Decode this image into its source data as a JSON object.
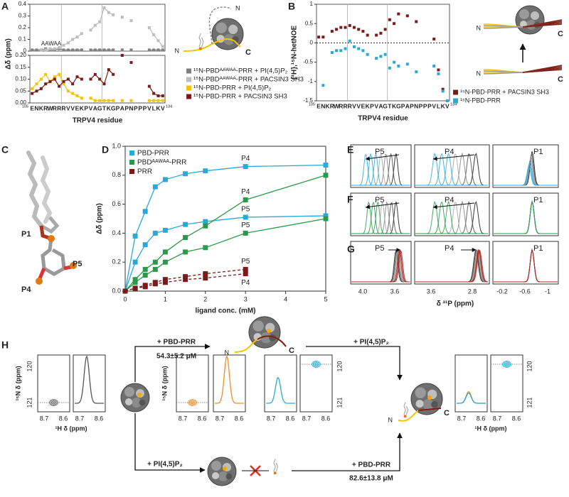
{
  "panel_labels": [
    "A",
    "B",
    "C",
    "D",
    "E",
    "F",
    "G",
    "H"
  ],
  "chart_data": [
    {
      "type": "line",
      "ylabel": "Δδ (ppm)",
      "annotation": "AAWAA",
      "ylim": [
        0,
        0.4
      ],
      "yticks": [
        0,
        0.1,
        0.2,
        0.3,
        0.4
      ],
      "series": [
        {
          "name": "¹⁵N-PBDᴬᴬᵂᴬᴬ-PRR + PI(4,5)P₂",
          "color": "#7f7f7f",
          "values": [
            0.01,
            0.01,
            0.01,
            0.02,
            0.01,
            0.01,
            0.02,
            0.01,
            0.01,
            0.01,
            0.01,
            0.01,
            null,
            0.01,
            0.01,
            0.01,
            0.01,
            0.01,
            0.01,
            null,
            0.01,
            null,
            0.01,
            null,
            null,
            null,
            0.01,
            0.01,
            0.01,
            0.01
          ]
        },
        {
          "name": "¹⁵N-PBDᴬᴬᵂᴬᴬ-PRR + PACSIN3 SH3",
          "color": "#bdbdbd",
          "values": [
            null,
            null,
            0.01,
            0.01,
            0.02,
            0.02,
            0.03,
            0.05,
            0.07,
            0.1,
            0.12,
            0.15,
            null,
            0.18,
            0.22,
            0.25,
            0.37,
            0.33,
            0.31,
            null,
            0.29,
            null,
            0.26,
            null,
            null,
            null,
            0.2,
            0.14,
            0.09,
            0.04
          ]
        }
      ]
    },
    {
      "type": "line",
      "xlabel": "TRPV4 residue",
      "x_start_label": "105",
      "x_end_label": "134",
      "categories": [
        "E",
        "N",
        "K",
        "R",
        "W",
        "R",
        "R",
        "R",
        "V",
        "V",
        "E",
        "K",
        "P",
        "V",
        "A",
        "G",
        "T",
        "K",
        "G",
        "P",
        "A",
        "P",
        "N",
        "P",
        "P",
        "P",
        "V",
        "L",
        "K",
        "V"
      ],
      "category_colors": [
        "#666666",
        "#666666",
        "#e8b800",
        "#e8b800",
        "#e8b800",
        "#e8b800",
        "#e8b800",
        "#888888",
        "#888888",
        "#888888",
        "#888888",
        "#888888",
        "#888888",
        "#888888",
        "#888888",
        "#888888",
        "#7b1a1a",
        "#7b1a1a",
        "#7b1a1a",
        "#7b1a1a",
        "#7b1a1a",
        "#7b1a1a",
        "#7b1a1a",
        "#7b1a1a",
        "#7b1a1a",
        "#7b1a1a",
        "#7b1a1a",
        "#7b1a1a",
        "#7b1a1a",
        "#7b1a1a"
      ],
      "ylim": [
        0,
        0.2
      ],
      "yticks": [
        {
          "value": 0,
          "label": "0.00"
        },
        0.05,
        {
          "value": 0.1,
          "label": "0.10"
        },
        0.15,
        {
          "value": 0.2,
          "label": "0.20"
        }
      ],
      "series": [
        {
          "name": "¹⁵N-PBD-PRR + PI(4,5)P₂",
          "color": "#f5c400",
          "values": [
            0.06,
            0.08,
            0.1,
            0.12,
            0.09,
            0.11,
            0.12,
            0.08,
            0.05,
            0.04,
            0.03,
            0.02,
            null,
            0.02,
            0.01,
            0.01,
            0.01,
            0.01,
            0.01,
            null,
            0.01,
            null,
            0.01,
            null,
            null,
            null,
            0.01,
            0.01,
            0.01,
            0.01
          ]
        },
        {
          "name": "¹⁵N-PBD-PRR + PACSIN3 SH3",
          "color": "#7b1a1a",
          "values": [
            0.04,
            0.05,
            0.06,
            0.08,
            0.09,
            0.1,
            0.07,
            0.09,
            0.1,
            0.08,
            0.11,
            0.1,
            null,
            0.1,
            0.12,
            0.1,
            0.08,
            0.14,
            0.12,
            null,
            0.2,
            null,
            0.17,
            null,
            null,
            null,
            0.07,
            0.04,
            0.03,
            0.03
          ]
        }
      ]
    },
    {
      "type": "scatter",
      "ylabel": "{¹H},¹⁵N-hetNOE",
      "xlabel": "TRPV4 residue",
      "x_start_label": "105",
      "x_end_label": "134",
      "zero_line": true,
      "categories": [
        "E",
        "N",
        "K",
        "R",
        "W",
        "R",
        "R",
        "R",
        "V",
        "V",
        "E",
        "K",
        "P",
        "V",
        "A",
        "G",
        "T",
        "K",
        "G",
        "P",
        "A",
        "P",
        "N",
        "P",
        "P",
        "P",
        "V",
        "L",
        "K",
        "V"
      ],
      "category_colors": [
        "#666666",
        "#666666",
        "#e8b800",
        "#e8b800",
        "#e8b800",
        "#e8b800",
        "#e8b800",
        "#888888",
        "#888888",
        "#888888",
        "#888888",
        "#888888",
        "#888888",
        "#888888",
        "#888888",
        "#888888",
        "#7b1a1a",
        "#7b1a1a",
        "#7b1a1a",
        "#7b1a1a",
        "#7b1a1a",
        "#7b1a1a",
        "#7b1a1a",
        "#7b1a1a",
        "#7b1a1a",
        "#7b1a1a",
        "#7b1a1a",
        "#7b1a1a",
        "#7b1a1a",
        "#7b1a1a"
      ],
      "ylim": [
        -1.5,
        1
      ],
      "yticks": [
        -1.5,
        -1,
        -0.5,
        0,
        0.5,
        1
      ],
      "series": [
        {
          "name": "¹⁵N-PBD-PRR + PACSIN3 SH3",
          "color": "#7b1a1a",
          "values": [
            0.15,
            0.15,
            null,
            0.3,
            0.35,
            0.4,
            0.4,
            0.45,
            0.4,
            0.35,
            0.3,
            0.2,
            null,
            0.2,
            0.25,
            0.35,
            0.6,
            0.5,
            0.75,
            null,
            0.7,
            null,
            0.55,
            null,
            null,
            null,
            0.1,
            -0.7,
            -1.2,
            null
          ]
        },
        {
          "name": "¹⁵N-PBD-PRR",
          "color": "#29a9d8",
          "values": [
            null,
            -1.1,
            null,
            -0.25,
            -0.2,
            -0.2,
            -0.15,
            0.05,
            -0.1,
            -0.15,
            -0.2,
            -0.3,
            null,
            -0.4,
            -0.35,
            -0.3,
            -0.65,
            -0.5,
            -0.6,
            null,
            -0.55,
            null,
            -0.75,
            null,
            null,
            null,
            -0.6,
            -0.8,
            -1.25,
            -1.5
          ]
        }
      ]
    },
    {
      "type": "binding",
      "xlabel": "ligand conc. (mM)",
      "ylabel": "Δδ (ppm)",
      "x": [
        0,
        0.25,
        0.5,
        0.75,
        1,
        1.5,
        2,
        3,
        5
      ],
      "xlim": [
        0,
        5
      ],
      "xticks": [
        0,
        1,
        2,
        3,
        4,
        5
      ],
      "ylim": [
        0,
        1
      ],
      "yticks": [
        {
          "value": 0,
          "label": "0.0"
        },
        0.2,
        0.4,
        0.6,
        0.8,
        {
          "value": 1,
          "label": "1.0"
        }
      ],
      "series": [
        {
          "name": "PBD-PRR",
          "color": "#29a9d8",
          "dashed": false,
          "sites": [
            {
              "label": "P4",
              "values": [
                0,
                0.38,
                0.55,
                0.72,
                0.77,
                0.81,
                0.83,
                0.86,
                0.87
              ]
            },
            {
              "label": "P5",
              "values": [
                0,
                0.2,
                0.32,
                0.4,
                0.42,
                0.46,
                0.48,
                0.51,
                0.52
              ]
            }
          ]
        },
        {
          "name": "PBDᴬᴬᵂᴬᴬ-PRR",
          "color": "#2a9a4a",
          "dashed": false,
          "sites": [
            {
              "label": "P4",
              "values": [
                0,
                0.08,
                0.15,
                0.2,
                0.27,
                0.37,
                0.45,
                0.63,
                0.8
              ]
            },
            {
              "label": "P5",
              "values": [
                0,
                0.06,
                0.11,
                0.15,
                0.2,
                0.27,
                0.3,
                0.4,
                0.5
              ]
            }
          ]
        },
        {
          "name": "PRR",
          "color": "#7b1a1a",
          "dashed": true,
          "sites": [
            {
              "label": "P5",
              "values": [
                0,
                0.02,
                0.04,
                0.06,
                0.08,
                0.1,
                0.12,
                0.15,
                null
              ]
            },
            {
              "label": "P4",
              "values": [
                0,
                0.02,
                0.03,
                0.05,
                0.06,
                0.08,
                0.09,
                0.12,
                null
              ]
            }
          ]
        }
      ]
    }
  ],
  "termini": {
    "N": "N",
    "C": "C"
  },
  "molecule": {
    "labels": [
      "P1",
      "P5",
      "P4"
    ]
  },
  "spectra": {
    "rows": [
      {
        "color": "#29a9d8"
      },
      {
        "color": "#2a9a4a"
      },
      {
        "color": "#b0231d"
      }
    ],
    "peaks": [
      "P5",
      "P4",
      "P1"
    ],
    "xticks": [
      [
        "4.0",
        "3.6"
      ],
      [
        "3.6",
        "2.8"
      ],
      [
        "-0.2",
        "-0.6",
        "-1"
      ]
    ],
    "xlabel": "δ ³¹P (ppm)"
  },
  "pathway": {
    "top_step": "+ PBD-PRR",
    "top_kd": "54.3±5.2 μM",
    "right_step": "+ PI(4,5)P₂",
    "bottom_step": "+ PI(4,5)P₂",
    "bottom_right_step": "+ PBD-PRR",
    "bottom_kd": "82.6±13.8 μM"
  },
  "hsqc": {
    "ylabel": "¹⁵N δ (ppm)",
    "xlabel": "¹H δ (ppm)",
    "yticks": [
      "120",
      "121"
    ],
    "xticks": [
      "8.7",
      "8.6"
    ]
  }
}
